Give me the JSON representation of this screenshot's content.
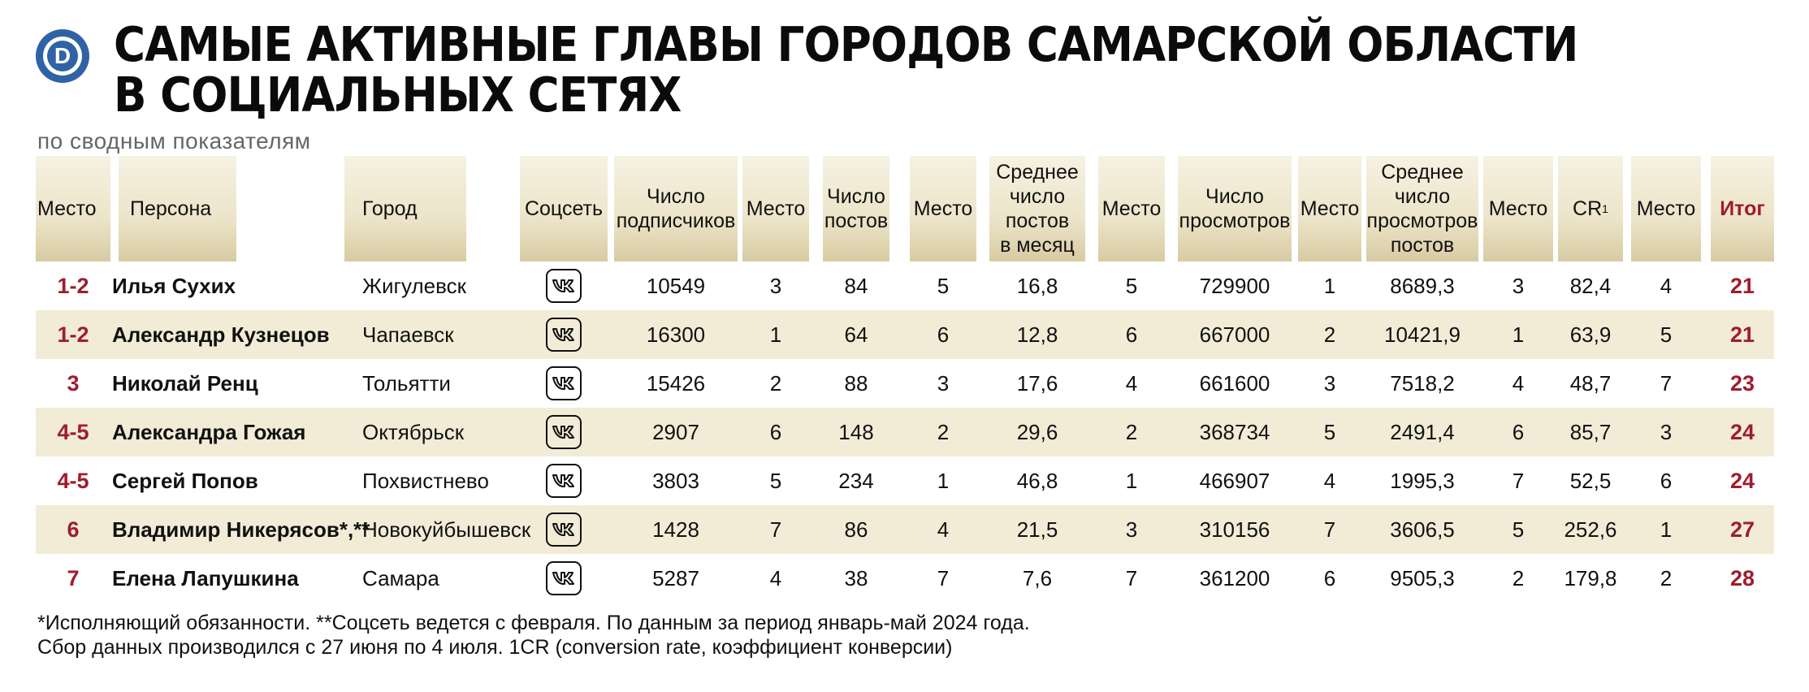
{
  "title_line1": "Самые активные главы городов Самарской области",
  "title_line2": "в социальных сетях",
  "subtitle": "по сводным показателям",
  "logo_letter": "D",
  "headers": {
    "place": "Место",
    "person": "Персона",
    "city": "Город",
    "network": "Соцсеть",
    "subscribers": [
      "Число",
      "подписчиков"
    ],
    "place2": "Место",
    "posts": [
      "Число",
      "постов"
    ],
    "place3": "Место",
    "avg_posts": [
      "Среднее",
      "число",
      "постов",
      "в месяц"
    ],
    "place4": "Место",
    "views": [
      "Число",
      "просмотров"
    ],
    "place5": "Место",
    "avg_views": [
      "Среднее",
      "число",
      "просмотров",
      "постов"
    ],
    "place6": "Место",
    "cr": "CR",
    "cr_sup": "1",
    "place7": "Место",
    "total": "Итог"
  },
  "rows": [
    {
      "place": "1-2",
      "person": "Илья Сухих",
      "city": "Жигулевск",
      "network_icon": "vk-icon",
      "subscribers": "10549",
      "p_sub": "3",
      "posts": "84",
      "p_posts": "5",
      "avg_posts": "16,8",
      "p_avg_posts": "5",
      "views": "729900",
      "p_views": "1",
      "avg_views": "8689,3",
      "p_avg_views": "3",
      "cr": "82,4",
      "p_cr": "4",
      "total": "21"
    },
    {
      "place": "1-2",
      "person": "Александр Кузнецов",
      "city": "Чапаевск",
      "network_icon": "vk-icon",
      "subscribers": "16300",
      "p_sub": "1",
      "posts": "64",
      "p_posts": "6",
      "avg_posts": "12,8",
      "p_avg_posts": "6",
      "views": "667000",
      "p_views": "2",
      "avg_views": "10421,9",
      "p_avg_views": "1",
      "cr": "63,9",
      "p_cr": "5",
      "total": "21"
    },
    {
      "place": "3",
      "person": "Николай Ренц",
      "city": "Тольятти",
      "network_icon": "vk-icon",
      "subscribers": "15426",
      "p_sub": "2",
      "posts": "88",
      "p_posts": "3",
      "avg_posts": "17,6",
      "p_avg_posts": "4",
      "views": "661600",
      "p_views": "3",
      "avg_views": "7518,2",
      "p_avg_views": "4",
      "cr": "48,7",
      "p_cr": "7",
      "total": "23"
    },
    {
      "place": "4-5",
      "person": "Александра Гожая",
      "city": "Октябрьск",
      "network_icon": "vk-icon",
      "subscribers": "2907",
      "p_sub": "6",
      "posts": "148",
      "p_posts": "2",
      "avg_posts": "29,6",
      "p_avg_posts": "2",
      "views": "368734",
      "p_views": "5",
      "avg_views": "2491,4",
      "p_avg_views": "6",
      "cr": "85,7",
      "p_cr": "3",
      "total": "24"
    },
    {
      "place": "4-5",
      "person": "Сергей Попов",
      "city": "Похвистнево",
      "network_icon": "vk-icon",
      "subscribers": "3803",
      "p_sub": "5",
      "posts": "234",
      "p_posts": "1",
      "avg_posts": "46,8",
      "p_avg_posts": "1",
      "views": "466907",
      "p_views": "4",
      "avg_views": "1995,3",
      "p_avg_views": "7",
      "cr": "52,5",
      "p_cr": "6",
      "total": "24"
    },
    {
      "place": "6",
      "person": "Владимир Никерясов*,**",
      "city": "Новокуйбышевск",
      "network_icon": "vk-icon",
      "subscribers": "1428",
      "p_sub": "7",
      "posts": "86",
      "p_posts": "4",
      "avg_posts": "21,5",
      "p_avg_posts": "3",
      "views": "310156",
      "p_views": "7",
      "avg_views": "3606,5",
      "p_avg_views": "5",
      "cr": "252,6",
      "p_cr": "1",
      "total": "27"
    },
    {
      "place": "7",
      "person": "Елена Лапушкина",
      "city": "Самара",
      "network_icon": "vk-icon",
      "subscribers": "5287",
      "p_sub": "4",
      "posts": "38",
      "p_posts": "7",
      "avg_posts": "7,6",
      "p_avg_posts": "7",
      "views": "361200",
      "p_views": "6",
      "avg_views": "9505,3",
      "p_avg_views": "2",
      "cr": "179,8",
      "p_cr": "2",
      "total": "28"
    }
  ],
  "footnote_line1": "*Исполняющий обязанности. **Соцсеть ведется с февраля. По данным за период январь-май 2024 года.",
  "footnote_line2": "Сбор данных производился с 27 июня по 4 июля. 1CR (conversion rate, коэффициент конверсии)",
  "colors": {
    "accent": "#a01c2c",
    "logo_blue": "#2f63a6",
    "header_bg": "#ece4c9",
    "row_shade": "#f2ecd7"
  }
}
